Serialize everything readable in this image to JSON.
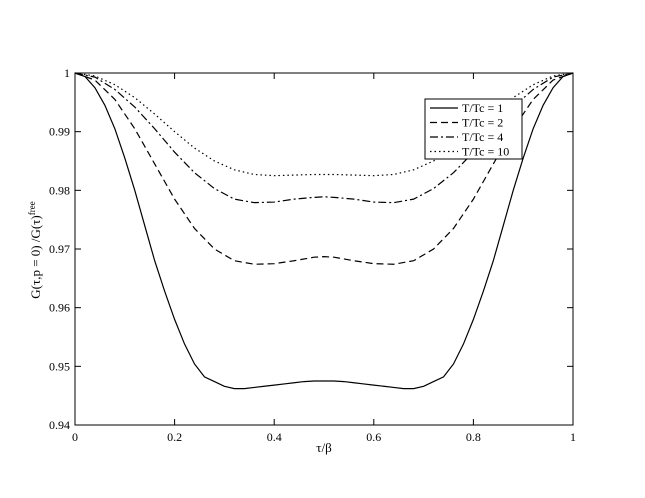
{
  "chart_data": {
    "type": "line",
    "title": "",
    "xlabel": "τ/β",
    "ylabel": {
      "main": "G(τ,p = 0)  /G(τ)",
      "superscript": "free"
    },
    "xlim": [
      0,
      1
    ],
    "ylim": [
      0.94,
      1
    ],
    "xticks": [
      "0",
      "0.2",
      "0.4",
      "0.6",
      "0.8",
      "1"
    ],
    "yticks": [
      "0.94",
      "0.95",
      "0.96",
      "0.97",
      "0.98",
      "0.99",
      "1"
    ],
    "grid": false,
    "legend_position": "top-right",
    "series": [
      {
        "name": "T/Tc = 1",
        "dash": "solid",
        "x": [
          0,
          0.02,
          0.04,
          0.06,
          0.08,
          0.1,
          0.12,
          0.14,
          0.16,
          0.18,
          0.2,
          0.22,
          0.24,
          0.26,
          0.28,
          0.3,
          0.32,
          0.34,
          0.36,
          0.38,
          0.4,
          0.42,
          0.44,
          0.46,
          0.48,
          0.5,
          0.52,
          0.54,
          0.56,
          0.58,
          0.6,
          0.62,
          0.64,
          0.66,
          0.68,
          0.7,
          0.72,
          0.74,
          0.76,
          0.78,
          0.8,
          0.82,
          0.84,
          0.86,
          0.88,
          0.9,
          0.92,
          0.94,
          0.96,
          0.98,
          1
        ],
        "y": [
          1,
          0.9994,
          0.9975,
          0.9945,
          0.9905,
          0.9855,
          0.98,
          0.974,
          0.968,
          0.9628,
          0.958,
          0.9538,
          0.9504,
          0.9482,
          0.9474,
          0.9466,
          0.9462,
          0.9462,
          0.9464,
          0.9466,
          0.9468,
          0.947,
          0.9472,
          0.9474,
          0.9475,
          0.9475,
          0.9475,
          0.9474,
          0.9472,
          0.947,
          0.9468,
          0.9466,
          0.9464,
          0.9462,
          0.9462,
          0.9466,
          0.9474,
          0.9482,
          0.9504,
          0.9538,
          0.958,
          0.9628,
          0.968,
          0.974,
          0.98,
          0.9855,
          0.9905,
          0.9945,
          0.9975,
          0.9994,
          1
        ]
      },
      {
        "name": "T/Tc = 2",
        "dash": "dashed",
        "x": [
          0,
          0.04,
          0.08,
          0.12,
          0.16,
          0.2,
          0.24,
          0.28,
          0.32,
          0.36,
          0.4,
          0.44,
          0.48,
          0.5,
          0.52,
          0.56,
          0.6,
          0.64,
          0.68,
          0.72,
          0.76,
          0.8,
          0.84,
          0.88,
          0.92,
          0.96,
          1
        ],
        "y": [
          1,
          0.9988,
          0.9955,
          0.9905,
          0.9845,
          0.9785,
          0.9735,
          0.97,
          0.968,
          0.9674,
          0.9675,
          0.968,
          0.9686,
          0.9687,
          0.9686,
          0.968,
          0.9675,
          0.9674,
          0.968,
          0.97,
          0.9735,
          0.9785,
          0.9845,
          0.9905,
          0.9955,
          0.9988,
          1
        ]
      },
      {
        "name": "T/Tc = 4",
        "dash": "dashdot",
        "x": [
          0,
          0.04,
          0.08,
          0.12,
          0.16,
          0.2,
          0.24,
          0.28,
          0.32,
          0.36,
          0.4,
          0.44,
          0.48,
          0.5,
          0.52,
          0.56,
          0.6,
          0.64,
          0.68,
          0.72,
          0.76,
          0.8,
          0.84,
          0.88,
          0.92,
          0.96,
          1
        ],
        "y": [
          1,
          0.9993,
          0.9972,
          0.9942,
          0.9905,
          0.9865,
          0.983,
          0.9803,
          0.9785,
          0.9779,
          0.978,
          0.9785,
          0.9788,
          0.9789,
          0.9788,
          0.9785,
          0.978,
          0.9779,
          0.9785,
          0.9803,
          0.983,
          0.9865,
          0.9905,
          0.9942,
          0.9972,
          0.9993,
          1
        ]
      },
      {
        "name": "T/Tc = 10",
        "dash": "dotted",
        "x": [
          0,
          0.04,
          0.08,
          0.12,
          0.16,
          0.2,
          0.24,
          0.28,
          0.32,
          0.36,
          0.4,
          0.44,
          0.48,
          0.5,
          0.52,
          0.56,
          0.6,
          0.64,
          0.68,
          0.72,
          0.76,
          0.8,
          0.84,
          0.88,
          0.92,
          0.96,
          1
        ],
        "y": [
          1,
          0.9995,
          0.998,
          0.9958,
          0.993,
          0.99,
          0.9872,
          0.985,
          0.9835,
          0.9827,
          0.9825,
          0.9826,
          0.9827,
          0.9827,
          0.9827,
          0.9826,
          0.9825,
          0.9827,
          0.9835,
          0.985,
          0.9872,
          0.99,
          0.993,
          0.9958,
          0.998,
          0.9995,
          1
        ]
      }
    ]
  }
}
